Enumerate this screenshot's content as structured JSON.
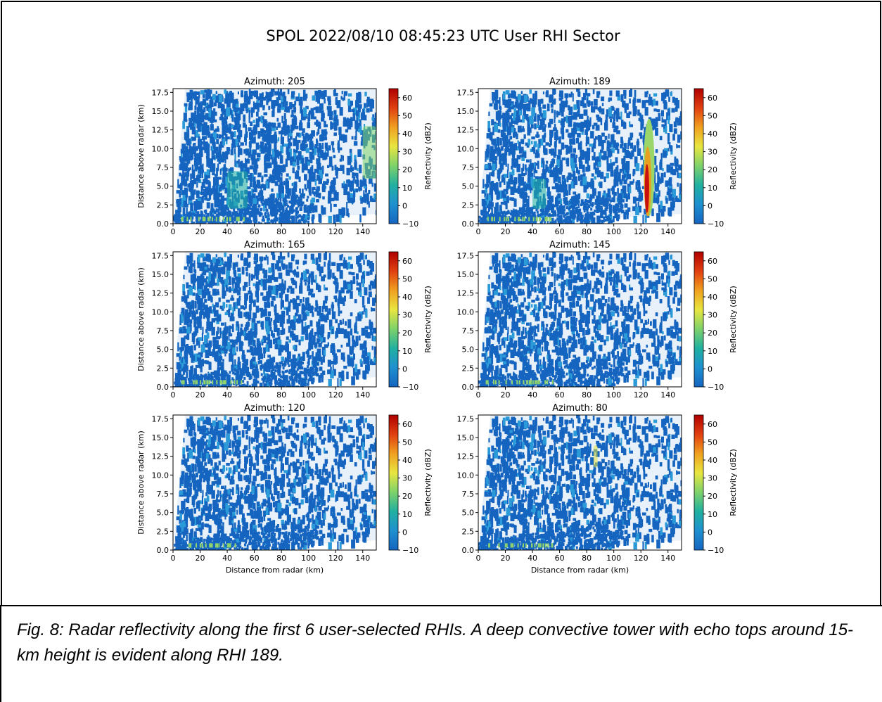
{
  "chart_data": {
    "type": "heatmap",
    "title": "SPOL 2022/08/10 08:45:23 UTC User RHI Sector",
    "xlabel": "Distance from radar (km)",
    "ylabel": "Distance above radar (km)",
    "xlim": [
      0,
      150
    ],
    "ylim": [
      0,
      18
    ],
    "xticks": [
      "0",
      "20",
      "40",
      "60",
      "80",
      "100",
      "120",
      "140"
    ],
    "yticks": [
      "0.0",
      "2.5",
      "5.0",
      "7.5",
      "10.0",
      "12.5",
      "15.0",
      "17.5"
    ],
    "colorbar": {
      "label": "Reflectivity (dBZ)",
      "range": [
        -10,
        65
      ],
      "ticks": [
        "60",
        "50",
        "40",
        "30",
        "20",
        "10",
        "0",
        "−10"
      ],
      "colors": [
        "#1565c0",
        "#1e90d0",
        "#20b0a0",
        "#7ed26a",
        "#e8e640",
        "#f0a020",
        "#e04010",
        "#b00000"
      ]
    },
    "panels": [
      {
        "title": "Azimuth: 205",
        "azimuth": 205
      },
      {
        "title": "Azimuth: 189",
        "azimuth": 189
      },
      {
        "title": "Azimuth: 165",
        "azimuth": 165
      },
      {
        "title": "Azimuth: 145",
        "azimuth": 145
      },
      {
        "title": "Azimuth: 120",
        "azimuth": 120
      },
      {
        "title": "Azimuth: 80",
        "azimuth": 80
      }
    ],
    "features": [
      {
        "panel": 0,
        "x": [
          140,
          150
        ],
        "y": [
          6,
          13
        ],
        "dbz": 20
      },
      {
        "panel": 0,
        "x": [
          40,
          55
        ],
        "y": [
          2,
          7
        ],
        "dbz": 12
      },
      {
        "panel": 1,
        "x": [
          122,
          130
        ],
        "y": [
          1,
          14
        ],
        "dbz": 55
      },
      {
        "panel": 1,
        "x": [
          40,
          50
        ],
        "y": [
          2,
          6
        ],
        "dbz": 15
      },
      {
        "panel": 5,
        "x": [
          85,
          88
        ],
        "y": [
          11,
          14
        ],
        "dbz": 35
      }
    ]
  },
  "caption": "Fig. 8: Radar reflectivity along the first 6 user-selected RHIs. A deep convective tower with echo tops around 15-km height is evident along RHI 189."
}
